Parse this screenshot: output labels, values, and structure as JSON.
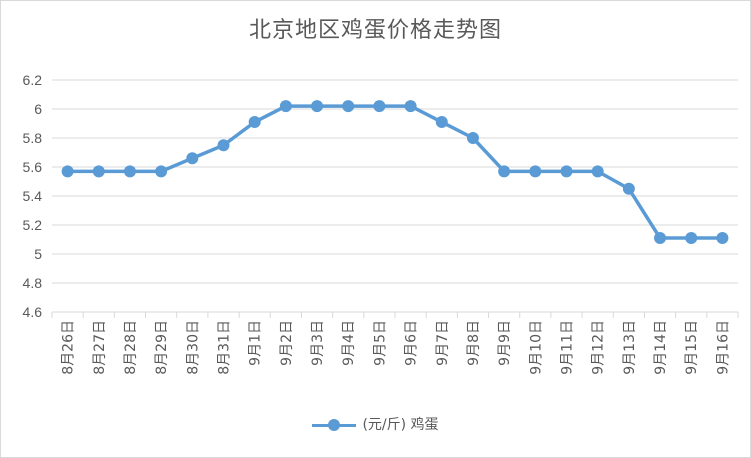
{
  "chart_data": {
    "type": "line",
    "title": "北京地区鸡蛋价格走势图",
    "xlabel": "",
    "ylabel": "",
    "categories": [
      "8月26日",
      "8月27日",
      "8月28日",
      "8月29日",
      "8月30日",
      "8月31日",
      "9月1日",
      "9月2日",
      "9月3日",
      "9月4日",
      "9月5日",
      "9月6日",
      "9月7日",
      "9月8日",
      "9月9日",
      "9月10日",
      "9月11日",
      "9月12日",
      "9月13日",
      "9月14日",
      "9月15日",
      "9月16日"
    ],
    "series": [
      {
        "name": "(元/斤) 鸡蛋",
        "color": "#5b9bd5",
        "values": [
          5.57,
          5.57,
          5.57,
          5.57,
          5.66,
          5.75,
          5.91,
          6.02,
          6.02,
          6.02,
          6.02,
          6.02,
          5.91,
          5.8,
          5.57,
          5.57,
          5.57,
          5.57,
          5.45,
          5.11,
          5.11,
          5.11
        ]
      }
    ],
    "ylim": [
      4.6,
      6.2
    ],
    "yticks": [
      "4.6",
      "4.8",
      "5",
      "5.2",
      "5.4",
      "5.6",
      "5.8",
      "6",
      "6.2"
    ],
    "grid": true,
    "legend_position": "bottom",
    "colors": {
      "line": "#5b9bd5",
      "grid": "#d9d9d9",
      "text": "#595959"
    }
  }
}
